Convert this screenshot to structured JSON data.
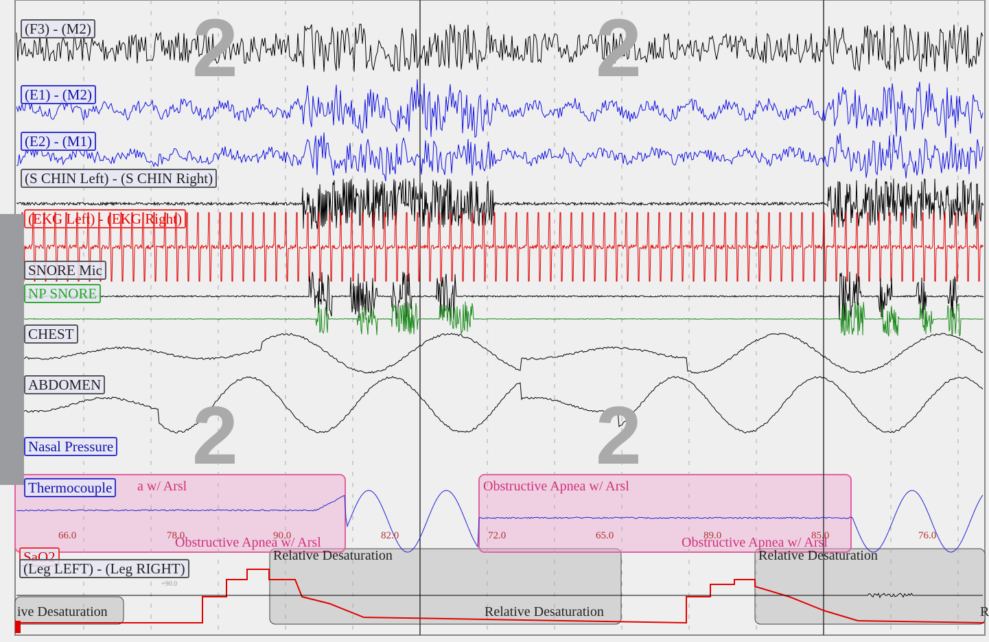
{
  "channels": [
    "(F3) - (M2)",
    "(E1) - (M2)",
    "(E2) - (M1)",
    "(S CHIN Left) - (S CHIN Right)",
    "(EKG Left) - (EKG Right)",
    "SNORE Mic",
    "NP SNORE",
    "CHEST",
    "ABDOMEN",
    "Nasal Pressure",
    "Thermocouple",
    "SaO2",
    "(Leg LEFT) - (Leg RIGHT)"
  ],
  "stages": [
    "2",
    "2",
    "2",
    "2"
  ],
  "events": [
    "a w/ Arsl",
    "Obstructive Apnea w/ Arsl",
    "Obstructive Apnea w/ Arsl",
    "Obstructive Apnea w/ Arsl"
  ],
  "sao2_values": [
    "66.0",
    "78.0",
    "90.0",
    "82.0",
    "72.0",
    "65.0",
    "89.0",
    "85.0",
    "76.0"
  ],
  "desaturations": [
    "ive Desaturation",
    "Relative Desaturation",
    "Relative Desaturation",
    "Relative Desaturation",
    "R"
  ],
  "scale": "+90.0"
}
